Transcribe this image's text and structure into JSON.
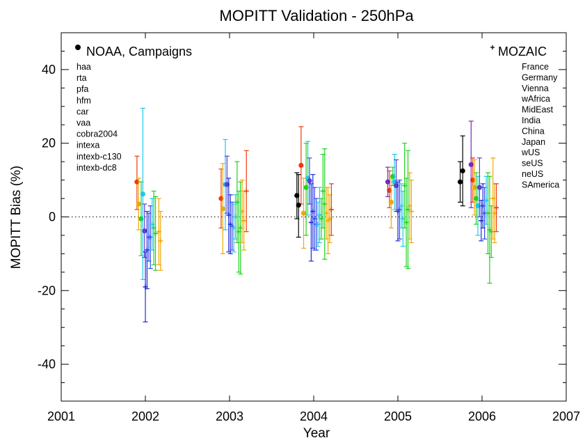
{
  "chart_data": {
    "type": "scatter",
    "title": "MOPITT Validation - 250hPa",
    "xlabel": "Year",
    "ylabel": "MOPITT Bias (%)",
    "xlim": [
      2001,
      2007
    ],
    "ylim": [
      -50,
      50
    ],
    "xticks": [
      "2001",
      "2002",
      "2003",
      "2004",
      "2005",
      "2006",
      "2007"
    ],
    "yticks": [
      "-40",
      "-20",
      "0",
      "20",
      "40"
    ],
    "xtick_values": [
      2001,
      2002,
      2003,
      2004,
      2005,
      2006,
      2007
    ],
    "ytick_values": [
      -40,
      -20,
      0,
      20,
      40
    ],
    "zero_line": "dotted",
    "grid": false,
    "legends": [
      {
        "title": "NOAA, Campaigns",
        "marker": "filled circle",
        "placement": "top-left",
        "entries": [
          {
            "name": "haa",
            "color": "#5a3fd0"
          },
          {
            "name": "rta",
            "color": "#1ec8ec"
          },
          {
            "name": "pfa",
            "color": "#1ed21e"
          },
          {
            "name": "hfm",
            "color": "#f0a800"
          },
          {
            "name": "car",
            "color": "#ee3a10"
          },
          {
            "name": "vaa",
            "color": "#7a2ab8"
          },
          {
            "name": "cobra2004",
            "color": "#000000"
          },
          {
            "name": "intexa",
            "color": "#000000"
          },
          {
            "name": "intexb-c130",
            "color": "#000000"
          },
          {
            "name": "intexb-dc8",
            "color": "#000000"
          }
        ]
      },
      {
        "title": "MOZAIC",
        "marker": "plus",
        "placement": "top-right",
        "entries": [
          {
            "name": "France",
            "color": "#2a4af0"
          },
          {
            "name": "Germany",
            "color": "#2a4af0"
          },
          {
            "name": "Vienna",
            "color": "#1a2ad8"
          },
          {
            "name": "wAfrica",
            "color": "#1ec8ec"
          },
          {
            "name": "MidEast",
            "color": "#1ed8e8"
          },
          {
            "name": "India",
            "color": "#1ed21e"
          },
          {
            "name": "China",
            "color": "#1ed21e"
          },
          {
            "name": "Japan",
            "color": "#3ad21e"
          },
          {
            "name": "wUS",
            "color": "#f0a800"
          },
          {
            "name": "seUS",
            "color": "#f0a800"
          },
          {
            "name": "neUS",
            "color": "#f0a800"
          },
          {
            "name": "SAmerica",
            "color": "#ee3a10"
          }
        ]
      }
    ],
    "series": [
      {
        "marker": "circle",
        "color": "#ee3a10",
        "points": [
          {
            "x": 2001.9,
            "y": 9.5,
            "lo": 2.0,
            "hi": 16.5
          },
          {
            "x": 2002.9,
            "y": 5.0,
            "lo": -3.0,
            "hi": 13.0
          },
          {
            "x": 2003.85,
            "y": 14.0,
            "lo": 3.5,
            "hi": 24.5
          },
          {
            "x": 2004.9,
            "y": 7.2,
            "lo": 2.5,
            "hi": 12.5
          },
          {
            "x": 2005.89,
            "y": 10.0,
            "lo": 4.0,
            "hi": 16.0
          }
        ]
      },
      {
        "marker": "circle",
        "color": "#f0a800",
        "points": [
          {
            "x": 2001.92,
            "y": 3.5,
            "lo": -3.5,
            "hi": 10.5
          },
          {
            "x": 2002.92,
            "y": 2.2,
            "lo": -10.0,
            "hi": 14.5
          },
          {
            "x": 2003.88,
            "y": 1.0,
            "lo": -8.5,
            "hi": 10.5
          },
          {
            "x": 2004.92,
            "y": 4.0,
            "lo": -3.0,
            "hi": 11.0
          },
          {
            "x": 2005.91,
            "y": 8.0,
            "lo": 0.5,
            "hi": 15.5
          }
        ]
      },
      {
        "marker": "circle",
        "color": "#1ed21e",
        "points": [
          {
            "x": 2001.95,
            "y": -0.5,
            "lo": -10.5,
            "hi": 9.5
          },
          {
            "x": 2003.91,
            "y": 8.0,
            "lo": -5.0,
            "hi": 20.0
          },
          {
            "x": 2004.94,
            "y": 11.0,
            "lo": 8.5,
            "hi": 13.5
          },
          {
            "x": 2005.93,
            "y": 5.0,
            "lo": -2.0,
            "hi": 12.0
          }
        ]
      },
      {
        "marker": "circle",
        "color": "#1ec8ec",
        "points": [
          {
            "x": 2001.97,
            "y": 6.2,
            "lo": -17.0,
            "hi": 29.5
          },
          {
            "x": 2002.95,
            "y": 8.8,
            "lo": -3.5,
            "hi": 21.0
          },
          {
            "x": 2003.93,
            "y": 10.5,
            "lo": 0.5,
            "hi": 20.5
          },
          {
            "x": 2004.96,
            "y": 9.5,
            "lo": 2.0,
            "hi": 17.0
          },
          {
            "x": 2005.95,
            "y": 3.0,
            "lo": -5.0,
            "hi": 11.0
          }
        ]
      },
      {
        "marker": "circle",
        "color": "#5a3fd0",
        "points": [
          {
            "x": 2001.99,
            "y": -3.8,
            "lo": -11.0,
            "hi": 3.5
          },
          {
            "x": 2002.97,
            "y": 8.8,
            "lo": 1.0,
            "hi": 16.5
          },
          {
            "x": 2003.95,
            "y": 9.8,
            "lo": 3.5,
            "hi": 16.0
          },
          {
            "x": 2004.98,
            "y": 8.5,
            "lo": 1.5,
            "hi": 15.5
          },
          {
            "x": 2005.97,
            "y": 8.0,
            "lo": 0.0,
            "hi": 16.0
          }
        ]
      },
      {
        "marker": "circle",
        "color": "#7a2ab8",
        "points": [
          {
            "x": 2004.88,
            "y": 9.5,
            "lo": 5.5,
            "hi": 13.5
          },
          {
            "x": 2005.87,
            "y": 14.2,
            "lo": 2.5,
            "hi": 26.0
          }
        ]
      },
      {
        "marker": "circle",
        "color": "#000000",
        "points": [
          {
            "x": 2003.8,
            "y": 5.8,
            "lo": -0.5,
            "hi": 12.0
          },
          {
            "x": 2003.82,
            "y": 3.2,
            "lo": -5.5,
            "hi": 11.5
          },
          {
            "x": 2005.74,
            "y": 9.5,
            "lo": 4.0,
            "hi": 15.0
          },
          {
            "x": 2005.77,
            "y": 12.5,
            "lo": 3.0,
            "hi": 22.0
          }
        ]
      },
      {
        "marker": "plus",
        "color": "#1a2ad8",
        "points": [
          {
            "x": 2002.0,
            "y": -19.0,
            "lo": -28.5,
            "hi": -9.5
          },
          {
            "x": 2002.02,
            "y": -9.0,
            "lo": -19.5,
            "hi": 1.5
          },
          {
            "x": 2002.99,
            "y": 0.5,
            "lo": -9.5,
            "hi": 10.5
          },
          {
            "x": 2003.01,
            "y": -2.0,
            "lo": -10.0,
            "hi": 6.0
          },
          {
            "x": 2003.97,
            "y": -1.5,
            "lo": -12.0,
            "hi": 9.0
          },
          {
            "x": 2003.99,
            "y": 1.5,
            "lo": -8.5,
            "hi": 11.5
          },
          {
            "x": 2005.0,
            "y": 1.5,
            "lo": -6.5,
            "hi": 9.5
          },
          {
            "x": 2005.99,
            "y": -1.0,
            "lo": -6.5,
            "hi": 4.5
          },
          {
            "x": 2006.01,
            "y": 3.0,
            "lo": -3.0,
            "hi": 9.0
          }
        ]
      },
      {
        "marker": "plus",
        "color": "#2a4af0",
        "points": [
          {
            "x": 2002.04,
            "y": -5.5,
            "lo": -12.0,
            "hi": 1.0
          },
          {
            "x": 2002.06,
            "y": -5.5,
            "lo": -14.0,
            "hi": 3.0
          },
          {
            "x": 2003.03,
            "y": -2.5,
            "lo": -9.0,
            "hi": 4.0
          },
          {
            "x": 2004.01,
            "y": -0.5,
            "lo": -9.0,
            "hi": 8.0
          },
          {
            "x": 2004.03,
            "y": -2.0,
            "lo": -9.0,
            "hi": 5.0
          },
          {
            "x": 2005.02,
            "y": 2.0,
            "lo": -6.0,
            "hi": 10.0
          },
          {
            "x": 2006.03,
            "y": 1.0,
            "lo": -6.0,
            "hi": 8.0
          }
        ]
      },
      {
        "marker": "plus",
        "color": "#1ec8ec",
        "points": [
          {
            "x": 2002.08,
            "y": -2.0,
            "lo": -9.0,
            "hi": 5.0
          },
          {
            "x": 2003.05,
            "y": -3.0,
            "lo": -9.5,
            "hi": 3.5
          },
          {
            "x": 2003.07,
            "y": 0.0,
            "lo": -6.0,
            "hi": 6.0
          },
          {
            "x": 2004.05,
            "y": -2.0,
            "lo": -8.0,
            "hi": 4.0
          },
          {
            "x": 2004.07,
            "y": 0.5,
            "lo": -7.0,
            "hi": 8.0
          },
          {
            "x": 2005.04,
            "y": 3.0,
            "lo": -3.0,
            "hi": 9.0
          },
          {
            "x": 2005.06,
            "y": -0.5,
            "lo": -8.0,
            "hi": 7.0
          },
          {
            "x": 2006.05,
            "y": 4.5,
            "lo": -2.0,
            "hi": 11.0
          }
        ]
      },
      {
        "marker": "plus",
        "color": "#1ed21e",
        "points": [
          {
            "x": 2002.1,
            "y": -3.0,
            "lo": -13.0,
            "hi": 7.0
          },
          {
            "x": 2002.12,
            "y": -4.5,
            "lo": -14.5,
            "hi": 5.5
          },
          {
            "x": 2003.09,
            "y": 4.0,
            "lo": -7.0,
            "hi": 15.0
          },
          {
            "x": 2003.11,
            "y": -4.0,
            "lo": -15.0,
            "hi": 7.0
          },
          {
            "x": 2003.13,
            "y": -3.0,
            "lo": -15.5,
            "hi": 9.5
          },
          {
            "x": 2004.09,
            "y": -0.5,
            "lo": -6.0,
            "hi": 5.0
          },
          {
            "x": 2004.11,
            "y": 7.0,
            "lo": -3.0,
            "hi": 17.0
          },
          {
            "x": 2004.13,
            "y": 3.5,
            "lo": -11.5,
            "hi": 18.5
          },
          {
            "x": 2005.08,
            "y": 8.5,
            "lo": -3.0,
            "hi": 20.0
          },
          {
            "x": 2005.1,
            "y": -1.5,
            "lo": -13.5,
            "hi": 10.5
          },
          {
            "x": 2005.12,
            "y": 2.0,
            "lo": -14.0,
            "hi": 18.0
          },
          {
            "x": 2006.07,
            "y": 1.0,
            "lo": -10.0,
            "hi": 12.0
          },
          {
            "x": 2006.09,
            "y": -3.5,
            "lo": -18.0,
            "hi": 11.0
          },
          {
            "x": 2006.11,
            "y": -4.0,
            "lo": -11.0,
            "hi": 3.0
          }
        ]
      },
      {
        "marker": "plus",
        "color": "#f0a800",
        "points": [
          {
            "x": 2002.16,
            "y": -4.0,
            "lo": -13.0,
            "hi": 5.0
          },
          {
            "x": 2002.18,
            "y": -6.5,
            "lo": -14.5,
            "hi": 1.5
          },
          {
            "x": 2003.15,
            "y": 1.5,
            "lo": -7.0,
            "hi": 10.0
          },
          {
            "x": 2003.17,
            "y": -1.0,
            "lo": -9.0,
            "hi": 7.0
          },
          {
            "x": 2004.15,
            "y": 1.0,
            "lo": -6.0,
            "hi": 8.0
          },
          {
            "x": 2004.17,
            "y": -1.0,
            "lo": -10.0,
            "hi": 8.0
          },
          {
            "x": 2004.19,
            "y": -0.5,
            "lo": -7.0,
            "hi": 6.0
          },
          {
            "x": 2005.14,
            "y": 3.0,
            "lo": -6.0,
            "hi": 12.0
          },
          {
            "x": 2005.16,
            "y": 1.5,
            "lo": -7.0,
            "hi": 10.0
          },
          {
            "x": 2006.13,
            "y": 5.0,
            "lo": -6.0,
            "hi": 16.0
          },
          {
            "x": 2006.15,
            "y": 1.0,
            "lo": -7.0,
            "hi": 9.0
          }
        ]
      },
      {
        "marker": "plus",
        "color": "#ee3a10",
        "points": [
          {
            "x": 2003.2,
            "y": 7.0,
            "lo": -4.0,
            "hi": 18.0
          },
          {
            "x": 2004.21,
            "y": 2.0,
            "lo": -5.0,
            "hi": 9.0
          },
          {
            "x": 2006.17,
            "y": 2.5,
            "lo": -4.0,
            "hi": 9.0
          }
        ]
      }
    ]
  }
}
